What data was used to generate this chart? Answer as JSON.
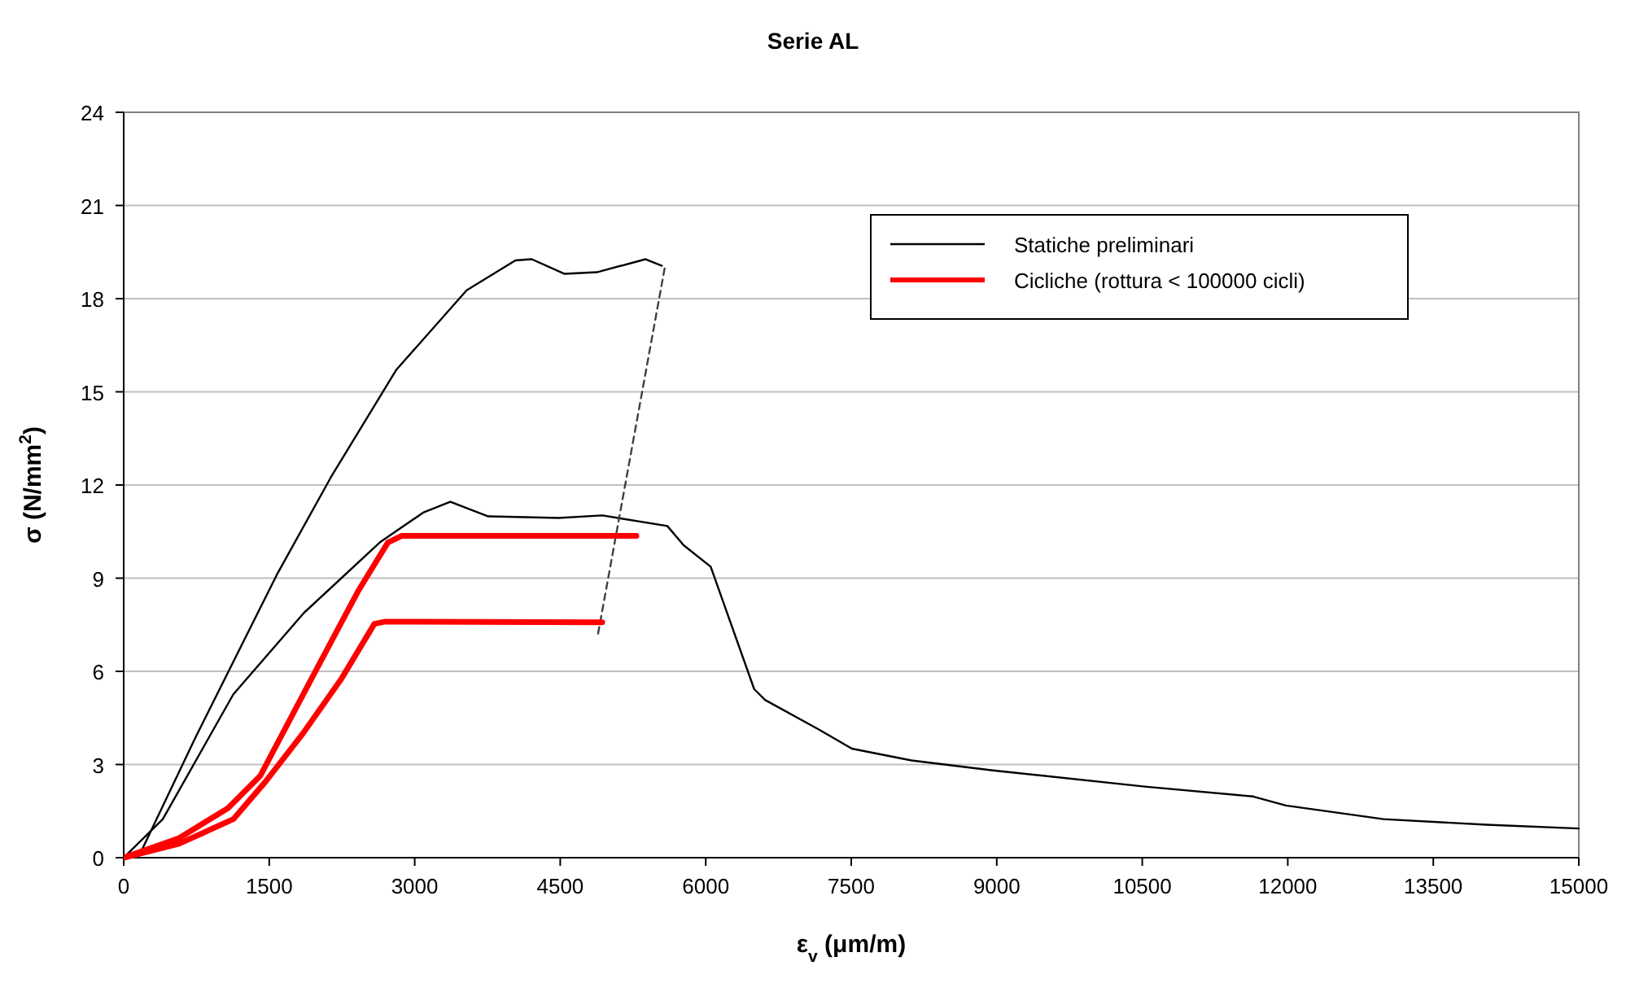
{
  "chart_data": {
    "type": "line",
    "title": "Serie AL",
    "xlabel": "ε$_{v}$ (μm/m)",
    "ylabel": "σ (N/mm$^{2}$)",
    "xlim": [
      0,
      15000
    ],
    "xticks": [
      0,
      1500,
      3000,
      4500,
      6000,
      7500,
      9000,
      10500,
      12000,
      13500,
      15000
    ],
    "ylim": [
      0,
      24
    ],
    "yticks": [
      0,
      3,
      6,
      9,
      12,
      15,
      18,
      21,
      24
    ],
    "grid": "y",
    "legend": "top right",
    "marker": "none",
    "series": [
      {
        "name": "Statiche preliminari",
        "color": "#000000",
        "x": [
          0,
          180,
          738,
          1577,
          2136,
          2808,
          3535,
          4038,
          4206,
          4541,
          4877,
          5380,
          5548
        ],
        "values": [
          0,
          0.2,
          3.86,
          9.1,
          12.25,
          15.7,
          18.27,
          19.23,
          19.27,
          18.8,
          18.85,
          19.27,
          19.06
        ]
      },
      {
        "color": "#000000",
        "x": [
          0,
          403,
          1130,
          1857,
          2640,
          3087,
          3367,
          3758,
          4485,
          4933,
          5604,
          5772,
          6051,
          6499,
          6611,
          7170,
          7506,
          8121,
          8960,
          10525,
          11644,
          11980,
          12987,
          14049,
          15000
        ],
        "values": [
          0,
          1.24,
          5.26,
          7.88,
          10.15,
          11.11,
          11.46,
          10.99,
          10.94,
          11.02,
          10.68,
          10.06,
          9.37,
          5.43,
          5.08,
          4.12,
          3.51,
          3.13,
          2.81,
          2.29,
          1.97,
          1.68,
          1.24,
          1.06,
          0.94
        ]
      },
      {
        "color": "#404040",
        "line_style": "dashed",
        "x": [
          5576,
          4888
        ],
        "values": [
          18.97,
          7.18
        ]
      },
      {
        "name": "Cicliche (rottura < 100000 cicli)",
        "color": "#ff0000",
        "x": [
          0,
          570,
          1074,
          1409,
          1969,
          2416,
          2724,
          2864,
          5285
        ],
        "values": [
          0,
          0.63,
          1.59,
          2.64,
          5.96,
          8.58,
          10.15,
          10.36,
          10.36
        ]
      },
      {
        "color": "#ff0000",
        "x": [
          0,
          570,
          1130,
          1465,
          1857,
          2248,
          2584,
          2696,
          4933
        ],
        "values": [
          0,
          0.45,
          1.24,
          2.46,
          4.04,
          5.78,
          7.53,
          7.6,
          7.58
        ]
      }
    ]
  }
}
